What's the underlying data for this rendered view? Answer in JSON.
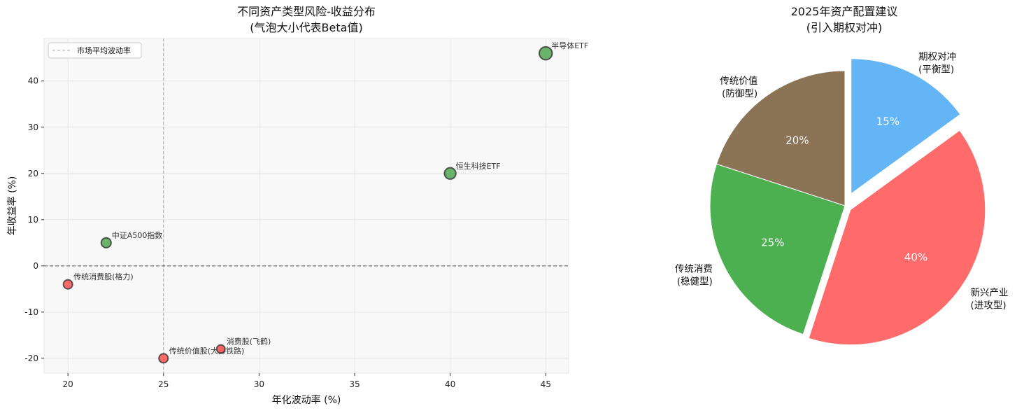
{
  "chart_data": [
    {
      "type": "scatter",
      "title": "不同资产类型风险-收益分布",
      "subtitle": "(气泡大小代表Beta值)",
      "xlabel": "年化波动率 (%)",
      "ylabel": "年收益率 (%)",
      "xlim": [
        18.75,
        46.2
      ],
      "ylim": [
        -23.2,
        49.2
      ],
      "xticks": [
        20,
        25,
        30,
        35,
        40,
        45
      ],
      "yticks": [
        -20,
        -10,
        0,
        10,
        20,
        30,
        40
      ],
      "grid": true,
      "legend": {
        "position": "upper left",
        "entries": [
          "市场平均波动率"
        ]
      },
      "reference_lines": [
        {
          "orientation": "vertical",
          "x": 25,
          "style": "dashed",
          "color": "#aaaaaa",
          "label": "市场平均波动率"
        },
        {
          "orientation": "horizontal",
          "y": 0,
          "style": "dashed",
          "color": "#555555"
        }
      ],
      "points": [
        {
          "label": "传统消费股(格力)",
          "x": 20,
          "y": -4,
          "size": 1.0,
          "color": "#ff5a5a"
        },
        {
          "label": "中证A500指数",
          "x": 22,
          "y": 5,
          "size": 1.1,
          "color": "#5aab5a"
        },
        {
          "label": "传统价值股(大秦铁路)",
          "x": 25,
          "y": -20,
          "size": 1.0,
          "color": "#ff5a5a"
        },
        {
          "label": "消费股(飞鹤)",
          "x": 28,
          "y": -18,
          "size": 0.9,
          "color": "#ff5a5a"
        },
        {
          "label": "恒生科技ETF",
          "x": 40,
          "y": 20,
          "size": 1.3,
          "color": "#5aab5a"
        },
        {
          "label": "半导体ETF",
          "x": 45,
          "y": 46,
          "size": 1.5,
          "color": "#5aab5a"
        }
      ]
    },
    {
      "type": "pie",
      "title": "2025年资产配置建议",
      "subtitle": "(引入期权对冲)",
      "startangle": 90,
      "slices": [
        {
          "label": "传统价值\n(防御型)",
          "line1": "传统价值",
          "line2": "(防御型)",
          "value": 20,
          "pct_label": "20%",
          "color": "#8b7355",
          "explode": 0
        },
        {
          "label": "传统消费\n(稳健型)",
          "line1": "传统消费",
          "line2": "(稳健型)",
          "value": 25,
          "pct_label": "25%",
          "color": "#4caf50",
          "explode": 0
        },
        {
          "label": "新兴产业\n(进攻型)",
          "line1": "新兴产业",
          "line2": "(进攻型)",
          "value": 40,
          "pct_label": "40%",
          "color": "#ff6b6b",
          "explode": 0.05
        },
        {
          "label": "期权对冲\n(平衡型)",
          "line1": "期权对冲",
          "line2": "(平衡型)",
          "value": 15,
          "pct_label": "15%",
          "color": "#64b5f6",
          "explode": 0.1
        }
      ]
    }
  ]
}
